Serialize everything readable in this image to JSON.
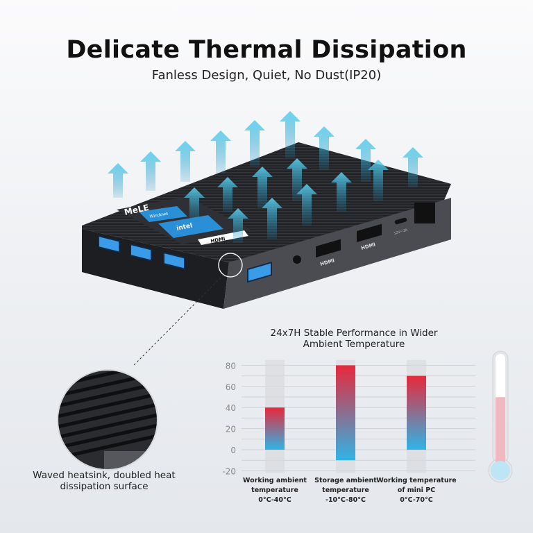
{
  "header": {
    "title": "Delicate Thermal Dissipation",
    "subtitle": "Fanless Design, Quiet, No Dust(IP20)"
  },
  "device": {
    "brand_label": "MeLE",
    "badges": [
      "Windows",
      "intel",
      "HDMI"
    ],
    "port_labels": [
      "HDMI",
      "HDMI",
      "12V⎓2A"
    ],
    "icons": [
      "usb-port-icon",
      "headphone-icon",
      "ethernet-icon",
      "airflow-arrow-icon"
    ]
  },
  "detail": {
    "caption": "Waved heatsink, doubled heat dissipation surface"
  },
  "chart_data": {
    "type": "bar",
    "title": "24x7H Stable Performance in Wider Ambient Temperature",
    "categories": [
      {
        "label": "Working ambient temperature",
        "range_label": "0°C-40°C"
      },
      {
        "label": "Storage ambient temperature",
        "range_label": "-10°C-80°C"
      },
      {
        "label": "Working temperature of mini PC",
        "range_label": "0°C-70°C"
      }
    ],
    "ranges": [
      [
        0,
        40
      ],
      [
        -10,
        80
      ],
      [
        0,
        70
      ]
    ],
    "ylim": [
      -20,
      80
    ],
    "yticks": [
      80,
      60,
      40,
      20,
      0,
      -20
    ],
    "grid": true,
    "colors": {
      "low": "#2fb4e6",
      "high": "#e8283a",
      "track": "#d9dadd"
    }
  },
  "thermometer": {
    "level": 0.5
  }
}
